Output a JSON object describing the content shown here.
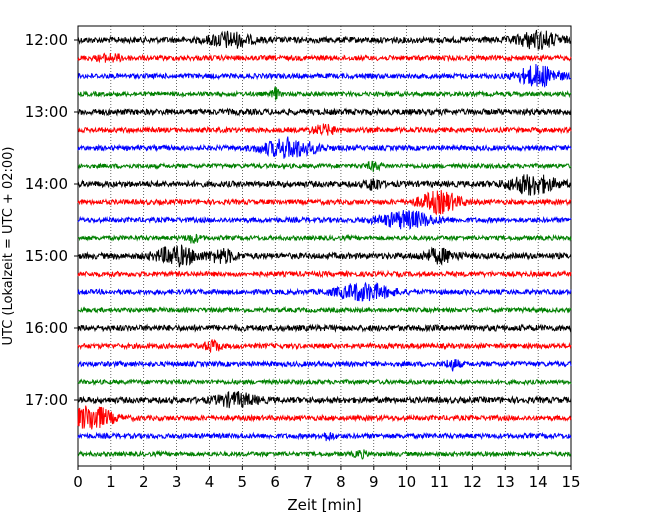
{
  "chart_data": {
    "type": "line",
    "subtype": "helicorder",
    "xlabel": "Zeit  [min]",
    "ylabel": "UTC (Lokalzeit = UTC + 02:00)",
    "xlim": [
      0,
      15
    ],
    "x_ticks": [
      0,
      1,
      2,
      3,
      4,
      5,
      6,
      7,
      8,
      9,
      10,
      11,
      12,
      13,
      14,
      15
    ],
    "grid": "vertical dotted",
    "row_interval_minutes": 15,
    "rows_shown": 24,
    "y_tick_labels": [
      {
        "row": 0,
        "label": "12:00"
      },
      {
        "row": 4,
        "label": "13:00"
      },
      {
        "row": 8,
        "label": "14:00"
      },
      {
        "row": 12,
        "label": "15:00"
      },
      {
        "row": 16,
        "label": "16:00"
      },
      {
        "row": 20,
        "label": "17:00"
      }
    ],
    "colors": [
      "#000000",
      "#ff0000",
      "#0000ff",
      "#008000"
    ],
    "base_noise": [
      3,
      2.5,
      2.5,
      2.2
    ],
    "events": [
      {
        "row": 0,
        "x": 4.6,
        "amp": 7,
        "w": 0.6
      },
      {
        "row": 0,
        "x": 14.0,
        "amp": 8,
        "w": 0.6
      },
      {
        "row": 1,
        "x": 1.0,
        "amp": 3,
        "w": 0.4
      },
      {
        "row": 2,
        "x": 14.0,
        "amp": 10,
        "w": 0.6
      },
      {
        "row": 3,
        "x": 6.0,
        "amp": 6,
        "w": 0.1
      },
      {
        "row": 5,
        "x": 7.5,
        "amp": 4,
        "w": 0.4
      },
      {
        "row": 6,
        "x": 6.4,
        "amp": 9,
        "w": 0.8
      },
      {
        "row": 7,
        "x": 9.0,
        "amp": 4,
        "w": 0.2
      },
      {
        "row": 8,
        "x": 9.0,
        "amp": 6,
        "w": 0.2
      },
      {
        "row": 8,
        "x": 13.8,
        "amp": 9,
        "w": 0.7
      },
      {
        "row": 9,
        "x": 11.0,
        "amp": 10,
        "w": 0.6
      },
      {
        "row": 10,
        "x": 10.0,
        "amp": 8,
        "w": 0.8
      },
      {
        "row": 11,
        "x": 3.5,
        "amp": 4,
        "w": 0.2
      },
      {
        "row": 12,
        "x": 3.0,
        "amp": 9,
        "w": 0.6
      },
      {
        "row": 12,
        "x": 4.4,
        "amp": 6,
        "w": 0.4
      },
      {
        "row": 12,
        "x": 11.0,
        "amp": 6,
        "w": 0.5
      },
      {
        "row": 14,
        "x": 8.7,
        "amp": 8,
        "w": 0.8
      },
      {
        "row": 17,
        "x": 4.1,
        "amp": 5,
        "w": 0.25
      },
      {
        "row": 18,
        "x": 11.4,
        "amp": 5,
        "w": 0.2
      },
      {
        "row": 20,
        "x": 4.8,
        "amp": 6,
        "w": 0.6
      },
      {
        "row": 21,
        "x": 0.4,
        "amp": 12,
        "w": 0.6
      },
      {
        "row": 22,
        "x": 7.6,
        "amp": 3,
        "w": 0.2
      },
      {
        "row": 23,
        "x": 8.6,
        "amp": 3,
        "w": 0.2
      }
    ]
  }
}
